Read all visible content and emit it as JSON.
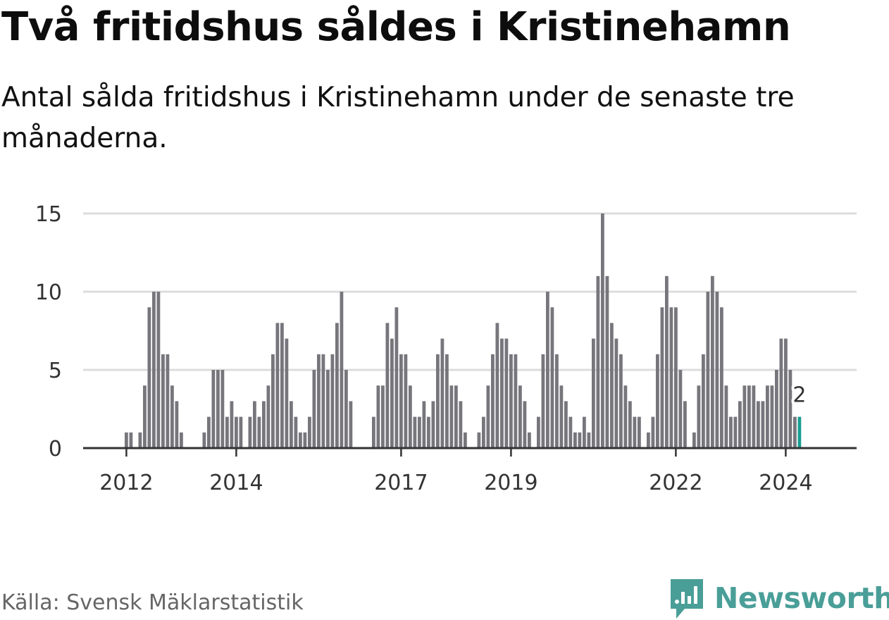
{
  "chart_data": {
    "type": "bar",
    "title": "Två fritidshus såldes i Kristinehamn",
    "subtitle": "Antal sålda fritidshus i Kristinehamn under de senaste tre månaderna.",
    "xlabel": "",
    "ylabel": "",
    "ylim": [
      0,
      15
    ],
    "yticks": [
      0,
      5,
      10,
      15
    ],
    "xticks": [
      {
        "label": "2012",
        "index": 2
      },
      {
        "label": "2014",
        "index": 26
      },
      {
        "label": "2017",
        "index": 62
      },
      {
        "label": "2019",
        "index": 86
      },
      {
        "label": "2022",
        "index": 122
      },
      {
        "label": "2024",
        "index": 146
      }
    ],
    "values": [
      0,
      0,
      1,
      1,
      0,
      1,
      4,
      9,
      10,
      10,
      6,
      6,
      4,
      3,
      1,
      0,
      0,
      0,
      0,
      1,
      2,
      5,
      5,
      5,
      2,
      3,
      2,
      2,
      0,
      2,
      3,
      2,
      3,
      4,
      6,
      8,
      8,
      7,
      3,
      2,
      1,
      1,
      2,
      5,
      6,
      6,
      5,
      6,
      8,
      10,
      5,
      3,
      0,
      0,
      0,
      0,
      2,
      4,
      4,
      8,
      7,
      9,
      6,
      6,
      4,
      2,
      2,
      3,
      2,
      3,
      6,
      7,
      6,
      4,
      4,
      3,
      1,
      0,
      0,
      1,
      2,
      4,
      6,
      8,
      7,
      7,
      6,
      6,
      4,
      3,
      1,
      0,
      2,
      6,
      10,
      9,
      6,
      4,
      3,
      2,
      1,
      1,
      2,
      1,
      7,
      11,
      15,
      11,
      8,
      7,
      6,
      4,
      3,
      2,
      2,
      0,
      1,
      2,
      6,
      9,
      11,
      9,
      9,
      5,
      3,
      0,
      1,
      4,
      6,
      10,
      11,
      10,
      9,
      4,
      2,
      2,
      3,
      4,
      4,
      4,
      3,
      3,
      4,
      4,
      5,
      7,
      7,
      5,
      2
    ],
    "highlight": {
      "index": 149,
      "value": 2,
      "label": "2",
      "color": "#1a9e93"
    },
    "bar_color": "#77767c"
  },
  "source": "Källa: Svensk Mäklarstatistik",
  "brand": {
    "name": "Newsworthy",
    "color": "#4a9e98"
  }
}
